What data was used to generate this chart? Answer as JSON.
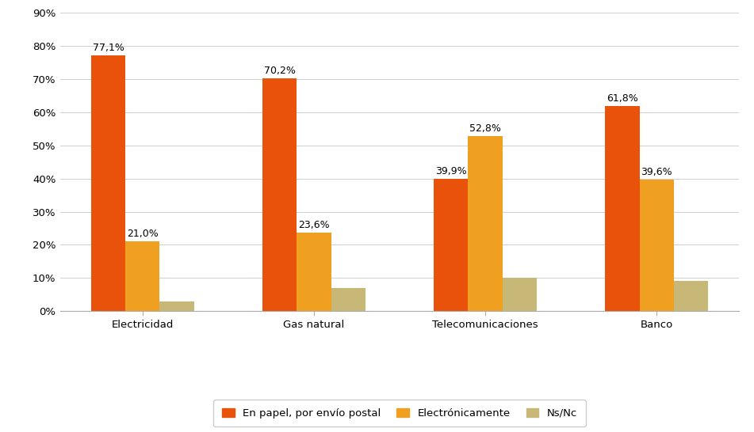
{
  "categories": [
    "Electricidad",
    "Gas natural",
    "Telecomunicaciones",
    "Banco"
  ],
  "series": {
    "En papel, por envío postal": [
      77.1,
      70.2,
      39.9,
      61.8
    ],
    "Electrónicamente": [
      21.0,
      23.6,
      52.8,
      39.6
    ],
    "Ns/Nc": [
      3.0,
      7.0,
      10.0,
      9.0
    ]
  },
  "labels": {
    "En papel, por envío postal": [
      "77,1%",
      "70,2%",
      "39,9%",
      "61,8%"
    ],
    "Electrónicamente": [
      "21,0%",
      "23,6%",
      "52,8%",
      "39,6%"
    ],
    "Ns/Nc": [
      "",
      "",
      "",
      ""
    ]
  },
  "colors": {
    "En papel, por envío postal": "#E8520A",
    "Electrónicamente": "#F0A020",
    "Ns/Nc": "#C8B878"
  },
  "ylim": [
    0,
    90
  ],
  "yticks": [
    0,
    10,
    20,
    30,
    40,
    50,
    60,
    70,
    80,
    90
  ],
  "ytick_labels": [
    "0%",
    "10%",
    "20%",
    "30%",
    "40%",
    "50%",
    "60%",
    "70%",
    "80%",
    "90%"
  ],
  "bar_width": 0.2,
  "background_color": "#FFFFFF",
  "grid_color": "#D0D0D0",
  "font_size": 9.5,
  "label_font_size": 9
}
